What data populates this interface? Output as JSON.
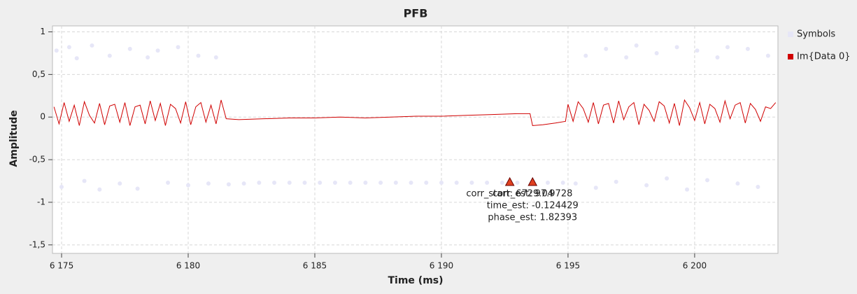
{
  "chart_data": {
    "type": "line",
    "title": "PFB",
    "xlabel": "Time (ms)",
    "ylabel": "Amplitude",
    "xlim": [
      6174.64,
      6203.29
    ],
    "ylim": [
      -1.6,
      1.07
    ],
    "xticks": [
      {
        "value": 6175,
        "label": "6 175"
      },
      {
        "value": 6180,
        "label": "6 180"
      },
      {
        "value": 6185,
        "label": "6 185"
      },
      {
        "value": 6190,
        "label": "6 190"
      },
      {
        "value": 6195,
        "label": "6 195"
      },
      {
        "value": 6200,
        "label": "6 200"
      }
    ],
    "yticks": [
      1,
      {
        "value": 0.5,
        "label": "0,5"
      },
      0,
      {
        "value": -0.5,
        "label": "-0,5"
      },
      -1,
      {
        "value": -1.5,
        "label": "-1,5"
      }
    ],
    "grid": true,
    "legend": "right",
    "series": [
      {
        "name": "Symbols",
        "type": "scatter",
        "color": "#e6e6f7",
        "x": [
          6174.8,
          6175.0,
          6175.3,
          6175.6,
          6175.9,
          6176.2,
          6176.5,
          6176.9,
          6177.3,
          6177.7,
          6178.0,
          6178.4,
          6178.8,
          6179.2,
          6179.6,
          6180.0,
          6180.4,
          6180.8,
          6181.1,
          6181.6,
          6182.2,
          6182.8,
          6183.4,
          6184.0,
          6184.6,
          6185.2,
          6185.8,
          6186.4,
          6187.0,
          6187.6,
          6188.2,
          6188.8,
          6189.4,
          6190.0,
          6190.6,
          6191.2,
          6191.8,
          6192.4,
          6193.0,
          6193.6,
          6194.2,
          6194.8,
          6195.3,
          6195.7,
          6196.1,
          6196.5,
          6196.9,
          6197.3,
          6197.7,
          6198.1,
          6198.5,
          6198.9,
          6199.3,
          6199.7,
          6200.1,
          6200.5,
          6200.9,
          6201.3,
          6201.7,
          6202.1,
          6202.5,
          6202.9
        ],
        "values": [
          0.78,
          -0.82,
          0.82,
          0.69,
          -0.75,
          0.84,
          -0.85,
          0.72,
          -0.78,
          0.8,
          -0.84,
          0.7,
          0.78,
          -0.77,
          0.82,
          -0.8,
          0.72,
          -0.78,
          0.7,
          -0.79,
          -0.78,
          -0.77,
          -0.77,
          -0.77,
          -0.77,
          -0.77,
          -0.77,
          -0.77,
          -0.77,
          -0.77,
          -0.77,
          -0.77,
          -0.77,
          -0.77,
          -0.77,
          -0.77,
          -0.77,
          -0.77,
          -0.77,
          -0.77,
          -0.77,
          -0.77,
          -0.78,
          0.72,
          -0.83,
          0.8,
          -0.76,
          0.7,
          0.84,
          -0.8,
          0.75,
          -0.72,
          0.82,
          -0.85,
          0.78,
          -0.74,
          0.7,
          0.82,
          -0.78,
          0.8,
          -0.82,
          0.72
        ]
      },
      {
        "name": "Im{Data 0}",
        "type": "line",
        "color": "#d00000",
        "x": [
          6174.7,
          6174.9,
          6175.1,
          6175.3,
          6175.5,
          6175.7,
          6175.9,
          6176.1,
          6176.3,
          6176.5,
          6176.7,
          6176.9,
          6177.1,
          6177.3,
          6177.5,
          6177.7,
          6177.9,
          6178.1,
          6178.3,
          6178.5,
          6178.7,
          6178.9,
          6179.1,
          6179.3,
          6179.5,
          6179.7,
          6179.9,
          6180.1,
          6180.3,
          6180.5,
          6180.7,
          6180.9,
          6181.1,
          6181.3,
          6181.5,
          6182,
          6183,
          6184,
          6185,
          6186,
          6187,
          6188,
          6189,
          6190,
          6191,
          6192,
          6193,
          6193.5,
          6193.6,
          6194,
          6194.5,
          6194.9,
          6195.0,
          6195.2,
          6195.4,
          6195.6,
          6195.8,
          6196.0,
          6196.2,
          6196.4,
          6196.6,
          6196.8,
          6197.0,
          6197.2,
          6197.4,
          6197.6,
          6197.8,
          6198.0,
          6198.2,
          6198.4,
          6198.6,
          6198.8,
          6199.0,
          6199.2,
          6199.4,
          6199.6,
          6199.8,
          6200.0,
          6200.2,
          6200.4,
          6200.6,
          6200.8,
          6201.0,
          6201.2,
          6201.4,
          6201.6,
          6201.8,
          6202.0,
          6202.2,
          6202.4,
          6202.6,
          6202.8,
          6203.0,
          6203.2
        ],
        "values": [
          0.12,
          -0.08,
          0.17,
          -0.05,
          0.14,
          -0.1,
          0.18,
          0.02,
          -0.07,
          0.16,
          -0.09,
          0.13,
          0.15,
          -0.06,
          0.17,
          -0.1,
          0.12,
          0.14,
          -0.08,
          0.19,
          -0.04,
          0.16,
          -0.1,
          0.15,
          0.1,
          -0.07,
          0.18,
          -0.09,
          0.12,
          0.17,
          -0.06,
          0.14,
          -0.08,
          0.2,
          -0.02,
          -0.03,
          -0.02,
          -0.01,
          -0.01,
          0.0,
          -0.01,
          0.0,
          0.01,
          0.01,
          0.02,
          0.03,
          0.04,
          0.04,
          -0.1,
          -0.09,
          -0.07,
          -0.05,
          0.15,
          -0.05,
          0.18,
          0.1,
          -0.06,
          0.17,
          -0.08,
          0.14,
          0.16,
          -0.07,
          0.19,
          -0.03,
          0.12,
          0.17,
          -0.09,
          0.15,
          0.08,
          -0.05,
          0.18,
          0.13,
          -0.07,
          0.16,
          -0.1,
          0.2,
          0.11,
          -0.04,
          0.17,
          -0.08,
          0.15,
          0.1,
          -0.06,
          0.19,
          -0.02,
          0.14,
          0.17,
          -0.07,
          0.16,
          0.09,
          -0.05,
          0.12,
          0.1,
          0.17
        ]
      }
    ],
    "annotations": [
      {
        "x": 6192.7,
        "y": -0.77,
        "color": "#e04020",
        "lines": [
          "corr_start: 6729.04"
        ]
      },
      {
        "x": 6193.6,
        "y": -0.77,
        "color": "#e04020",
        "lines": [
          "corr_est: 97.9728",
          "time_est: -0.124429",
          "phase_est: 1.82393"
        ]
      }
    ]
  }
}
